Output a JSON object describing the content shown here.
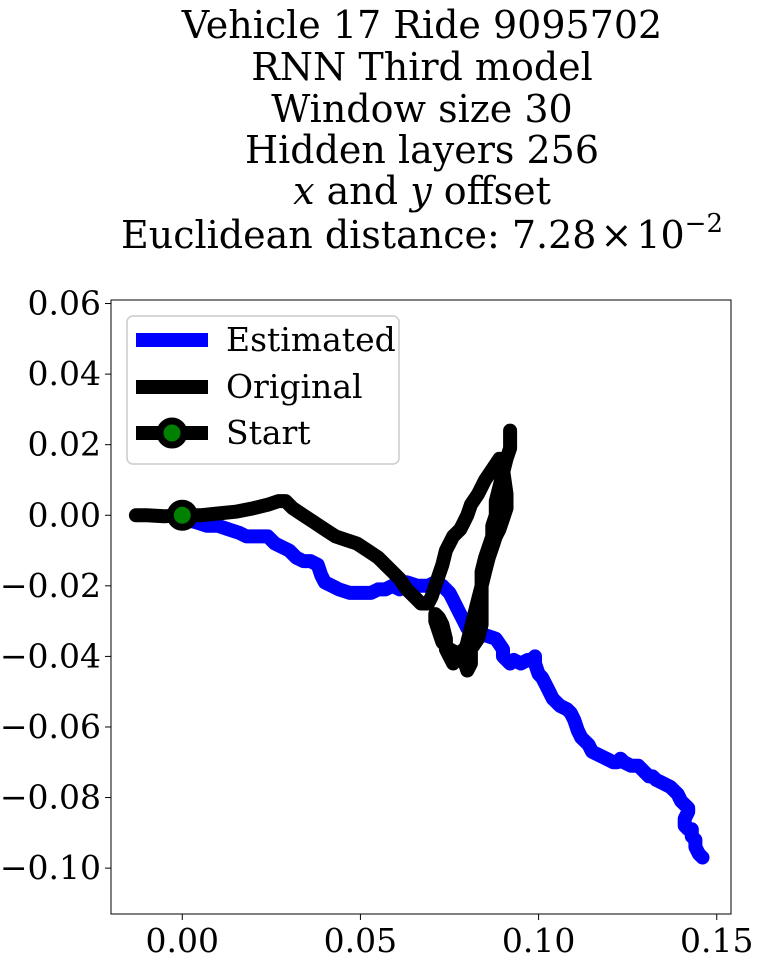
{
  "chart_data": {
    "type": "line",
    "title_lines": [
      "Vehicle 17 Ride 9095702",
      "RNN Third model",
      "Window size 30",
      "Hidden layers 256",
      "x and y offset",
      "Euclidean distance: 7.28 × 10⁻²"
    ],
    "title_parts": {
      "line5": {
        "v1": "x",
        "mid": " and ",
        "v2": "y",
        "tail": " offset"
      },
      "line6": {
        "prefix": "Euclidean distance: 7.28",
        "times": "×",
        "base": "10",
        "exp": "−2"
      }
    },
    "xlim": [
      -0.02,
      0.154
    ],
    "ylim": [
      -0.113,
      0.061
    ],
    "x_ticks": [
      0.0,
      0.05,
      0.1,
      0.15
    ],
    "x_tick_labels": [
      "0.00",
      "0.05",
      "0.10",
      "0.15"
    ],
    "y_ticks": [
      0.06,
      0.04,
      0.02,
      0.0,
      -0.02,
      -0.04,
      -0.06,
      -0.08,
      -0.1
    ],
    "y_tick_labels": [
      "0.06",
      "0.04",
      "0.02",
      "0.00",
      "−0.02",
      "−0.04",
      "−0.06",
      "−0.08",
      "−0.10"
    ],
    "grid": false,
    "legend_position": "top-left",
    "series": [
      {
        "name": "Estimated",
        "color": "#0000ff",
        "x": [
          0.0,
          0.004,
          0.007,
          0.01,
          0.013,
          0.016,
          0.018,
          0.021,
          0.024,
          0.026,
          0.028,
          0.03,
          0.032,
          0.034,
          0.036,
          0.038,
          0.039,
          0.04,
          0.042,
          0.044,
          0.047,
          0.05,
          0.053,
          0.055,
          0.057,
          0.059,
          0.061,
          0.063,
          0.066,
          0.069,
          0.071,
          0.073,
          0.075,
          0.076,
          0.077,
          0.078,
          0.079,
          0.08,
          0.082,
          0.085,
          0.088,
          0.09,
          0.09,
          0.092,
          0.093,
          0.095,
          0.097,
          0.098,
          0.099,
          0.099,
          0.1,
          0.101,
          0.102,
          0.103,
          0.104,
          0.106,
          0.108,
          0.109,
          0.11,
          0.111,
          0.112,
          0.113,
          0.114,
          0.115,
          0.117,
          0.119,
          0.121,
          0.122,
          0.123,
          0.124,
          0.126,
          0.128,
          0.13,
          0.131,
          0.132,
          0.133,
          0.135,
          0.137,
          0.139,
          0.14,
          0.141,
          0.142,
          0.142,
          0.141,
          0.141,
          0.142,
          0.143,
          0.143,
          0.144,
          0.144,
          0.145,
          0.146
        ],
        "y": [
          -0.001,
          -0.002,
          -0.003,
          -0.003,
          -0.004,
          -0.005,
          -0.006,
          -0.006,
          -0.006,
          -0.008,
          -0.009,
          -0.01,
          -0.012,
          -0.013,
          -0.013,
          -0.014,
          -0.017,
          -0.019,
          -0.02,
          -0.021,
          -0.022,
          -0.022,
          -0.022,
          -0.021,
          -0.021,
          -0.02,
          -0.021,
          -0.019,
          -0.02,
          -0.02,
          -0.019,
          -0.02,
          -0.022,
          -0.024,
          -0.026,
          -0.028,
          -0.03,
          -0.032,
          -0.033,
          -0.034,
          -0.035,
          -0.038,
          -0.04,
          -0.042,
          -0.041,
          -0.042,
          -0.041,
          -0.041,
          -0.04,
          -0.042,
          -0.045,
          -0.046,
          -0.048,
          -0.05,
          -0.052,
          -0.054,
          -0.055,
          -0.056,
          -0.058,
          -0.061,
          -0.063,
          -0.064,
          -0.065,
          -0.067,
          -0.068,
          -0.069,
          -0.07,
          -0.07,
          -0.069,
          -0.07,
          -0.071,
          -0.071,
          -0.073,
          -0.074,
          -0.074,
          -0.075,
          -0.076,
          -0.077,
          -0.079,
          -0.081,
          -0.082,
          -0.083,
          -0.084,
          -0.086,
          -0.088,
          -0.089,
          -0.089,
          -0.091,
          -0.092,
          -0.094,
          -0.096,
          -0.097
        ]
      },
      {
        "name": "Original",
        "color": "#000000",
        "x": [
          -0.013,
          -0.01,
          -0.005,
          -0.001,
          0.0,
          0.005,
          0.01,
          0.015,
          0.02,
          0.024,
          0.027,
          0.029,
          0.031,
          0.034,
          0.037,
          0.04,
          0.043,
          0.046,
          0.049,
          0.052,
          0.055,
          0.058,
          0.061,
          0.063,
          0.065,
          0.067,
          0.068,
          0.069,
          0.07,
          0.071,
          0.072,
          0.073,
          0.074,
          0.076,
          0.078,
          0.079,
          0.08,
          0.081,
          0.083,
          0.085,
          0.087,
          0.089,
          0.09,
          0.091,
          0.091,
          0.09,
          0.089,
          0.088,
          0.087,
          0.086,
          0.085,
          0.084,
          0.083,
          0.082,
          0.081,
          0.08,
          0.079,
          0.079,
          0.08,
          0.081,
          0.081,
          0.08,
          0.079,
          0.077,
          0.076,
          0.075,
          0.074,
          0.074,
          0.073,
          0.072,
          0.071,
          0.071,
          0.072,
          0.073,
          0.075,
          0.077,
          0.079,
          0.081,
          0.083,
          0.084,
          0.084,
          0.084,
          0.084,
          0.085,
          0.086,
          0.087,
          0.087,
          0.088,
          0.088,
          0.089,
          0.09,
          0.091,
          0.092,
          0.092,
          0.092,
          0.092
        ],
        "y": [
          0.0,
          0.0,
          -0.0003,
          0.0,
          0.0,
          0.0,
          0.0005,
          0.001,
          0.002,
          0.003,
          0.004,
          0.004,
          0.002,
          0.0,
          -0.002,
          -0.004,
          -0.006,
          -0.007,
          -0.008,
          -0.01,
          -0.012,
          -0.015,
          -0.018,
          -0.021,
          -0.023,
          -0.025,
          -0.025,
          -0.025,
          -0.023,
          -0.02,
          -0.017,
          -0.014,
          -0.01,
          -0.006,
          -0.004,
          -0.002,
          0.0,
          0.003,
          0.006,
          0.01,
          0.013,
          0.016,
          0.013,
          0.006,
          0.002,
          -0.001,
          -0.004,
          -0.006,
          -0.009,
          -0.012,
          -0.016,
          -0.02,
          -0.024,
          -0.028,
          -0.032,
          -0.036,
          -0.04,
          -0.041,
          -0.044,
          -0.042,
          -0.039,
          -0.037,
          -0.038,
          -0.04,
          -0.042,
          -0.04,
          -0.038,
          -0.035,
          -0.031,
          -0.029,
          -0.028,
          -0.03,
          -0.033,
          -0.036,
          -0.038,
          -0.039,
          -0.04,
          -0.038,
          -0.035,
          -0.031,
          -0.026,
          -0.021,
          -0.016,
          -0.012,
          -0.009,
          -0.006,
          -0.003,
          0.0,
          0.004,
          0.008,
          0.012,
          0.016,
          0.019,
          0.021,
          0.023,
          0.024
        ],
        "notes_order": "plotted as given"
      },
      {
        "name": "Start",
        "color": "#000000",
        "marker_face": "#008000",
        "x": [
          0.0
        ],
        "y": [
          0.0
        ]
      }
    ]
  }
}
